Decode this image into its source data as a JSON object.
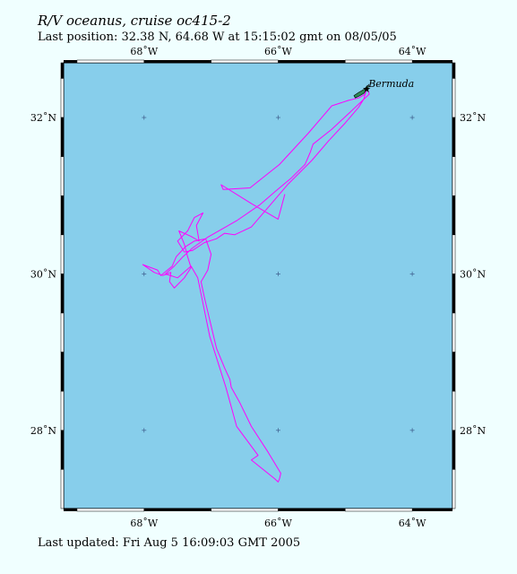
{
  "header": {
    "title": "R/V oceanus, cruise oc415-2",
    "last_position": "Last position:  32.38 N, 64.68 W at  15:15:02 gmt on  08/05/05"
  },
  "footer": {
    "last_updated": "Last updated: Fri Aug  5 16:09:03 GMT 2005"
  },
  "map": {
    "background_color": "#87ceeb",
    "land_color": "#2e8b57",
    "track_color": "#ff00ff",
    "lon_range": [
      -69.2,
      -63.4
    ],
    "lat_range": [
      27.0,
      32.7
    ],
    "lon_ticks": [
      {
        "value": -68,
        "label": "68˚W"
      },
      {
        "value": -66,
        "label": "66˚W"
      },
      {
        "value": -64,
        "label": "64˚W"
      }
    ],
    "lat_ticks": [
      {
        "value": 32,
        "label": "32˚N"
      },
      {
        "value": 30,
        "label": "30˚N"
      },
      {
        "value": 28,
        "label": "28˚N"
      }
    ],
    "place_label": "Bermuda",
    "last_position": {
      "lat": 32.38,
      "lon": -64.68
    },
    "track": [
      [
        -64.68,
        32.38
      ],
      [
        -64.64,
        32.3
      ],
      [
        -64.95,
        32.05
      ],
      [
        -65.2,
        31.85
      ],
      [
        -65.48,
        31.66
      ],
      [
        -65.52,
        31.56
      ],
      [
        -65.6,
        31.4
      ],
      [
        -65.8,
        31.23
      ],
      [
        -66.05,
        31.05
      ],
      [
        -66.28,
        30.88
      ],
      [
        -66.62,
        30.68
      ],
      [
        -67.05,
        30.47
      ],
      [
        -67.28,
        30.33
      ],
      [
        -67.42,
        30.22
      ],
      [
        -67.55,
        30.1
      ],
      [
        -67.68,
        30.0
      ],
      [
        -67.5,
        29.95
      ],
      [
        -67.3,
        30.1
      ],
      [
        -67.2,
        29.95
      ],
      [
        -67.02,
        29.2
      ],
      [
        -66.78,
        28.55
      ],
      [
        -66.62,
        28.05
      ],
      [
        -66.3,
        27.68
      ],
      [
        -66.4,
        27.62
      ],
      [
        -66.05,
        27.38
      ],
      [
        -66.0,
        27.34
      ],
      [
        -65.98,
        27.38
      ],
      [
        -65.96,
        27.45
      ],
      [
        -66.15,
        27.72
      ],
      [
        -66.4,
        28.05
      ],
      [
        -66.57,
        28.35
      ],
      [
        -66.7,
        28.55
      ],
      [
        -66.72,
        28.65
      ],
      [
        -66.8,
        28.8
      ],
      [
        -66.92,
        29.05
      ],
      [
        -67.1,
        29.7
      ],
      [
        -67.15,
        29.9
      ],
      [
        -67.05,
        30.05
      ],
      [
        -67.0,
        30.25
      ],
      [
        -67.08,
        30.45
      ],
      [
        -67.25,
        30.42
      ],
      [
        -67.38,
        30.35
      ],
      [
        -67.52,
        30.22
      ],
      [
        -67.58,
        30.1
      ],
      [
        -67.75,
        29.98
      ],
      [
        -67.8,
        30.05
      ],
      [
        -67.9,
        30.08
      ],
      [
        -68.02,
        30.12
      ],
      [
        -67.85,
        30.02
      ],
      [
        -67.72,
        29.98
      ],
      [
        -67.6,
        30.02
      ],
      [
        -67.62,
        29.9
      ],
      [
        -67.55,
        29.82
      ],
      [
        -67.4,
        29.95
      ],
      [
        -67.3,
        30.08
      ],
      [
        -67.35,
        30.22
      ],
      [
        -67.4,
        30.38
      ],
      [
        -67.48,
        30.55
      ],
      [
        -67.3,
        30.48
      ],
      [
        -67.18,
        30.42
      ],
      [
        -67.22,
        30.62
      ],
      [
        -67.12,
        30.78
      ],
      [
        -67.25,
        30.72
      ],
      [
        -67.35,
        30.55
      ],
      [
        -67.5,
        30.42
      ],
      [
        -67.4,
        30.28
      ],
      [
        -67.28,
        30.3
      ],
      [
        -67.1,
        30.4
      ],
      [
        -66.92,
        30.45
      ],
      [
        -66.8,
        30.52
      ],
      [
        -66.65,
        30.5
      ],
      [
        -66.4,
        30.6
      ],
      [
        -66.15,
        30.85
      ],
      [
        -65.85,
        31.15
      ],
      [
        -65.5,
        31.45
      ],
      [
        -65.25,
        31.7
      ],
      [
        -65.0,
        31.93
      ],
      [
        -64.8,
        32.13
      ],
      [
        -64.72,
        32.24
      ],
      [
        -64.68,
        32.38
      ],
      [
        -64.7,
        32.3
      ],
      [
        -64.8,
        32.25
      ],
      [
        -64.95,
        32.22
      ],
      [
        -65.2,
        32.15
      ],
      [
        -65.55,
        31.8
      ],
      [
        -65.98,
        31.4
      ],
      [
        -66.42,
        31.1
      ],
      [
        -66.82,
        31.08
      ],
      [
        -66.85,
        31.14
      ],
      [
        -66.4,
        30.9
      ],
      [
        -66.0,
        30.7
      ],
      [
        -65.9,
        31.02
      ]
    ],
    "land_outline": [
      [
        -64.65,
        32.42
      ],
      [
        -64.72,
        32.36
      ],
      [
        -64.8,
        32.32
      ],
      [
        -64.87,
        32.28
      ],
      [
        -64.85,
        32.25
      ],
      [
        -64.78,
        32.28
      ],
      [
        -64.7,
        32.32
      ],
      [
        -64.66,
        32.37
      ]
    ]
  }
}
